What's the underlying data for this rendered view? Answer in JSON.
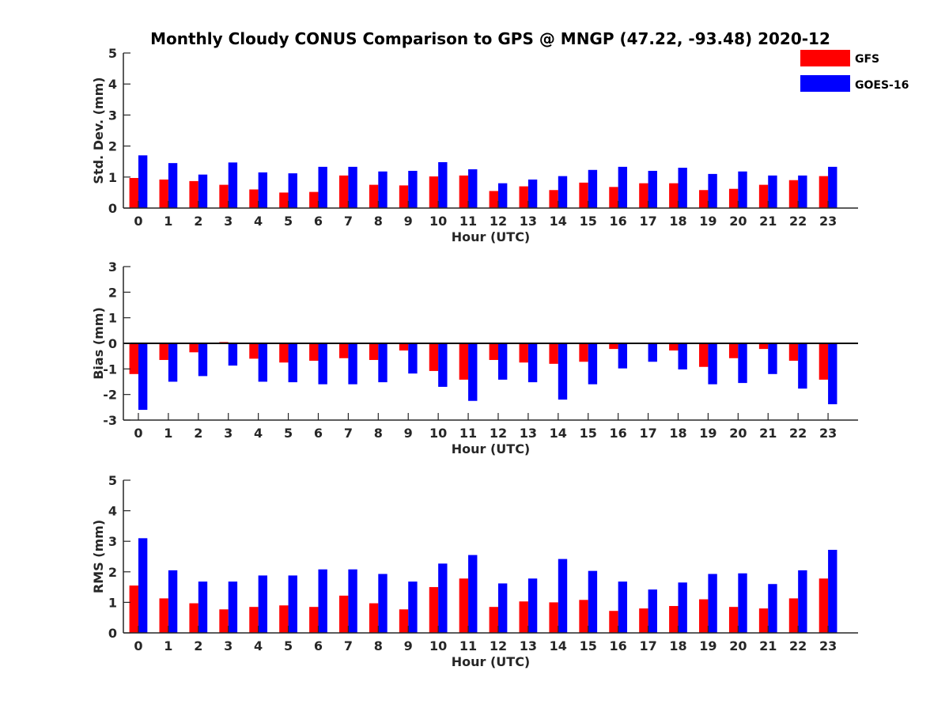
{
  "title": "Monthly Cloudy CONUS Comparison to GPS @ MNGP (47.22, -93.48) 2020-12",
  "legend": [
    {
      "name": "GFS",
      "color": "#ff0000"
    },
    {
      "name": "GOES-16",
      "color": "#0000ff"
    }
  ],
  "chart_data": [
    {
      "type": "bar",
      "xlabel": "Hour (UTC)",
      "ylabel": "Std. Dev. (mm)",
      "ylim": [
        0,
        5
      ],
      "yticks": [
        0,
        1,
        2,
        3,
        4,
        5
      ],
      "categories": [
        "0",
        "1",
        "2",
        "3",
        "4",
        "5",
        "6",
        "7",
        "8",
        "9",
        "10",
        "11",
        "12",
        "13",
        "14",
        "15",
        "16",
        "17",
        "18",
        "19",
        "20",
        "21",
        "22",
        "23"
      ],
      "series": [
        {
          "name": "GFS",
          "color": "#ff0000",
          "values": [
            0.97,
            0.92,
            0.87,
            0.75,
            0.6,
            0.5,
            0.52,
            1.05,
            0.75,
            0.73,
            1.02,
            1.05,
            0.55,
            0.7,
            0.58,
            0.82,
            0.68,
            0.8,
            0.8,
            0.58,
            0.62,
            0.75,
            0.9,
            1.03
          ]
        },
        {
          "name": "GOES-16",
          "color": "#0000ff",
          "values": [
            1.7,
            1.45,
            1.08,
            1.47,
            1.15,
            1.12,
            1.33,
            1.33,
            1.18,
            1.2,
            1.48,
            1.25,
            0.8,
            0.92,
            1.03,
            1.23,
            1.33,
            1.2,
            1.3,
            1.1,
            1.18,
            1.05,
            1.05,
            1.33
          ]
        }
      ],
      "legend": "top-right",
      "grid": false
    },
    {
      "type": "bar",
      "xlabel": "Hour (UTC)",
      "ylabel": "Bias (mm)",
      "ylim": [
        -3,
        3
      ],
      "yticks": [
        -3,
        -2,
        -1,
        0,
        1,
        2,
        3
      ],
      "categories": [
        "0",
        "1",
        "2",
        "3",
        "4",
        "5",
        "6",
        "7",
        "8",
        "9",
        "10",
        "11",
        "12",
        "13",
        "14",
        "15",
        "16",
        "17",
        "18",
        "19",
        "20",
        "21",
        "22",
        "23"
      ],
      "series": [
        {
          "name": "GFS",
          "color": "#ff0000",
          "values": [
            -1.2,
            -0.65,
            -0.35,
            0.05,
            -0.6,
            -0.75,
            -0.68,
            -0.58,
            -0.65,
            -0.28,
            -1.08,
            -1.42,
            -0.65,
            -0.75,
            -0.8,
            -0.72,
            -0.22,
            0.02,
            -0.28,
            -0.92,
            -0.58,
            -0.22,
            -0.68,
            -1.42
          ]
        },
        {
          "name": "GOES-16",
          "color": "#0000ff",
          "values": [
            -2.6,
            -1.5,
            -1.28,
            -0.87,
            -1.5,
            -1.52,
            -1.6,
            -1.6,
            -1.52,
            -1.18,
            -1.7,
            -2.25,
            -1.42,
            -1.52,
            -2.2,
            -1.6,
            -0.98,
            -0.72,
            -1.02,
            -1.6,
            -1.55,
            -1.2,
            -1.77,
            -2.38
          ]
        }
      ],
      "grid": false
    },
    {
      "type": "bar",
      "xlabel": "Hour (UTC)",
      "ylabel": "RMS (mm)",
      "ylim": [
        0,
        5
      ],
      "yticks": [
        0,
        1,
        2,
        3,
        4,
        5
      ],
      "categories": [
        "0",
        "1",
        "2",
        "3",
        "4",
        "5",
        "6",
        "7",
        "8",
        "9",
        "10",
        "11",
        "12",
        "13",
        "14",
        "15",
        "16",
        "17",
        "18",
        "19",
        "20",
        "21",
        "22",
        "23"
      ],
      "series": [
        {
          "name": "GFS",
          "color": "#ff0000",
          "values": [
            1.55,
            1.13,
            0.97,
            0.77,
            0.85,
            0.9,
            0.85,
            1.22,
            0.97,
            0.77,
            1.5,
            1.78,
            0.85,
            1.03,
            1.0,
            1.08,
            0.72,
            0.8,
            0.88,
            1.1,
            0.85,
            0.8,
            1.13,
            1.78
          ]
        },
        {
          "name": "GOES-16",
          "color": "#0000ff",
          "values": [
            3.1,
            2.05,
            1.68,
            1.68,
            1.88,
            1.88,
            2.08,
            2.08,
            1.93,
            1.68,
            2.27,
            2.55,
            1.62,
            1.78,
            2.42,
            2.03,
            1.68,
            1.42,
            1.65,
            1.93,
            1.95,
            1.6,
            2.05,
            2.72
          ]
        }
      ],
      "grid": false
    }
  ]
}
